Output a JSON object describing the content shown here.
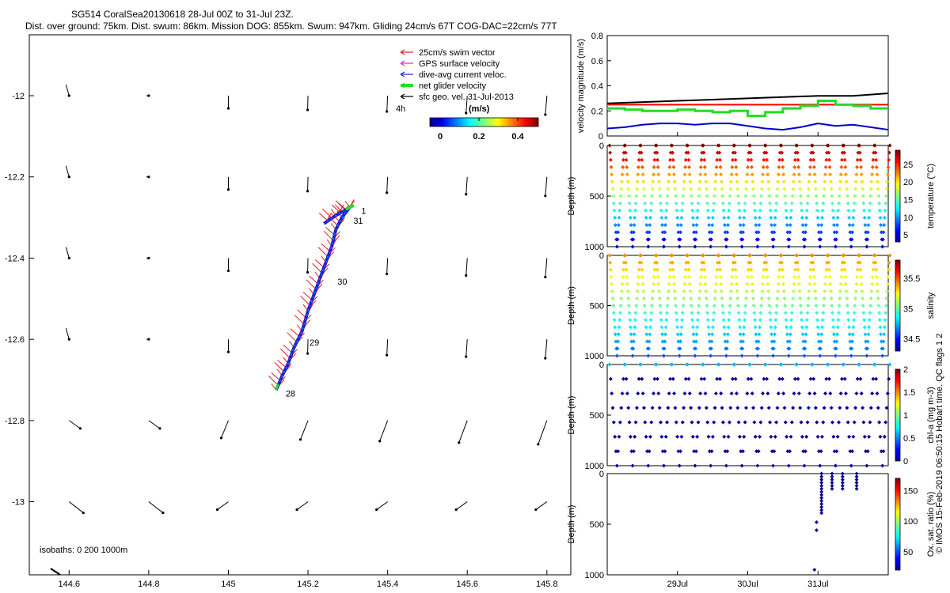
{
  "title": {
    "line1": "SG514 CoralSea20130618 28-Jul 00Z to 31-Jul 23Z.",
    "line2": "Dist. over ground: 75km. Dist. swum: 86km. Mission DOG: 855km. Swum: 947km. Gliding 24cm/s 67T COG-DAC=22cm/s 77T"
  },
  "map": {
    "x_ticks": [
      "144.6",
      "144.8",
      "145",
      "145.2",
      "145.4",
      "145.6",
      "145.8"
    ],
    "y_ticks": [
      "-12",
      "-12.2",
      "-12.4",
      "-12.6",
      "-12.8",
      "-13"
    ],
    "xlim": [
      144.5,
      145.86
    ],
    "ylim": [
      -13.18,
      -11.85
    ],
    "legend": [
      {
        "label": "25cm/s swim vector",
        "color": "#e41a1c"
      },
      {
        "label": "GPS surface velocity",
        "color": "#cc33cc"
      },
      {
        "label": "dive-avg current veloc.",
        "color": "#2020d0"
      },
      {
        "label": "net glider velocity",
        "color": "#22dd22"
      },
      {
        "label": "sfc geo. vel. 31-Jul-2013",
        "color": "#000000"
      }
    ],
    "scale_label": "4h",
    "colorbar_title": "(m/s)",
    "colorbar_ticks": [
      "0",
      "0.2",
      "0.4"
    ],
    "isobaths_label": "isobaths: 0   200  1000m",
    "day_labels": [
      "28",
      "29",
      "30",
      "31",
      "1"
    ],
    "track": [
      [
        145.12,
        -12.725
      ],
      [
        145.135,
        -12.69
      ],
      [
        145.15,
        -12.66
      ],
      [
        145.165,
        -12.62
      ],
      [
        145.185,
        -12.58
      ],
      [
        145.2,
        -12.53
      ],
      [
        145.215,
        -12.49
      ],
      [
        145.23,
        -12.45
      ],
      [
        145.245,
        -12.41
      ],
      [
        145.26,
        -12.37
      ],
      [
        145.27,
        -12.33
      ],
      [
        145.285,
        -12.3
      ],
      [
        145.305,
        -12.275
      ],
      [
        145.27,
        -12.295
      ],
      [
        145.24,
        -12.315
      ]
    ],
    "day_points": [
      {
        "label": "28",
        "x": 145.12,
        "y": -12.725
      },
      {
        "label": "29",
        "x": 145.18,
        "y": -12.6
      },
      {
        "label": "30",
        "x": 145.25,
        "y": -12.45
      },
      {
        "label": "31",
        "x": 145.29,
        "y": -12.3
      },
      {
        "label": "1",
        "x": 145.31,
        "y": -12.275
      }
    ]
  },
  "chart_data": [
    {
      "type": "line",
      "ylabel": "velocity magnitude (m/s)",
      "x_ticks": [
        "29Jul",
        "30Jul",
        "31Jul"
      ],
      "xlim": [
        0,
        4
      ],
      "ylim": [
        0,
        0.8
      ],
      "y_ticks": [
        "0",
        "0.2",
        "0.4",
        "0.6",
        "0.8"
      ],
      "series": [
        {
          "color": "#000000",
          "x": [
            0,
            0.5,
            1,
            1.5,
            2,
            2.5,
            3,
            3.5,
            4
          ],
          "values": [
            0.26,
            0.27,
            0.28,
            0.29,
            0.3,
            0.31,
            0.32,
            0.32,
            0.34
          ]
        },
        {
          "color": "#ff0000",
          "x": [
            0,
            4
          ],
          "values": [
            0.25,
            0.25
          ]
        },
        {
          "color": "#0000cc",
          "x": [
            0,
            0.25,
            0.5,
            0.75,
            1,
            1.25,
            1.5,
            1.75,
            2,
            2.25,
            2.5,
            2.75,
            3,
            3.25,
            3.5,
            3.75,
            4
          ],
          "values": [
            0.06,
            0.07,
            0.09,
            0.1,
            0.1,
            0.09,
            0.1,
            0.1,
            0.08,
            0.06,
            0.05,
            0.07,
            0.1,
            0.08,
            0.09,
            0.07,
            0.05
          ]
        },
        {
          "color": "#22dd22",
          "x": [
            0,
            0.25,
            0.5,
            0.75,
            1,
            1.25,
            1.5,
            1.75,
            2,
            2.25,
            2.5,
            2.75,
            3,
            3.25,
            3.5,
            3.75,
            4
          ],
          "values": [
            0.22,
            0.21,
            0.2,
            0.2,
            0.21,
            0.2,
            0.19,
            0.2,
            0.16,
            0.19,
            0.22,
            0.24,
            0.28,
            0.25,
            0.24,
            0.22,
            0.22
          ]
        }
      ]
    },
    {
      "type": "scatter",
      "ylabel": "Depth (m)",
      "colorbar_label": "temperature (°C)",
      "y_ticks": [
        "0",
        "500",
        "1000"
      ],
      "colorbar_ticks": [
        "5",
        "10",
        "15",
        "20",
        "25"
      ],
      "clim": [
        3,
        29
      ],
      "variable": "temperature",
      "dives": 18
    },
    {
      "type": "scatter",
      "ylabel": "Depth (m)",
      "colorbar_label": "salinity",
      "y_ticks": [
        "0",
        "500",
        "1000"
      ],
      "colorbar_ticks": [
        "34.5",
        "35",
        "35.5"
      ],
      "clim": [
        34.3,
        35.8
      ],
      "variable": "salinity",
      "dives": 18
    },
    {
      "type": "scatter",
      "ylabel": "Depth (m)",
      "colorbar_label": "chl-a (mg m-3)",
      "y_ticks": [
        "0",
        "500",
        "1000"
      ],
      "colorbar_ticks": [
        "0",
        "0.5",
        "1",
        "1.5",
        "2"
      ],
      "clim": [
        0,
        2
      ],
      "variable": "chl-a",
      "dives": 18
    },
    {
      "type": "scatter",
      "ylabel": "Depth (m)",
      "colorbar_label": "Ox. sat. ratio (%)",
      "y_ticks": [
        "0",
        "500",
        "1000"
      ],
      "colorbar_ticks": [
        "50",
        "100",
        "150"
      ],
      "clim": [
        20,
        170
      ],
      "x_ticks": [
        "29Jul",
        "30Jul",
        "31Jul"
      ],
      "variable": "oxygen"
    }
  ],
  "side_note": "© IMOS 15-Feb-2019 06:50:15 Hobart time. QC flags 1  2"
}
